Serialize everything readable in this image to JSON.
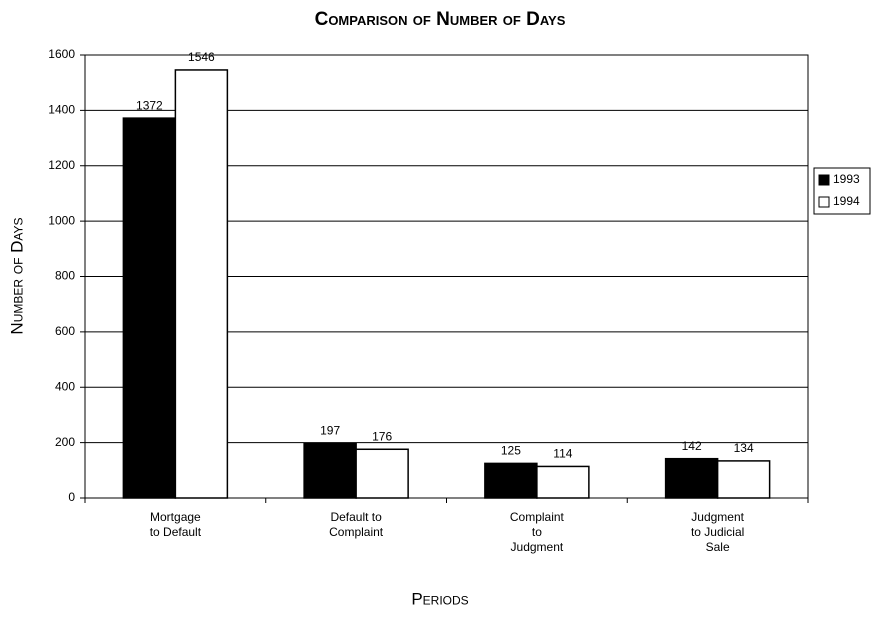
{
  "chart_data": {
    "type": "bar",
    "title": "Comparison of Number of Days",
    "x_label": "Periods",
    "y_label": "Number of Days",
    "categories": [
      "Mortgage\nto Default",
      "Default to\nComplaint",
      "Complaint\nto\nJudgment",
      "Judgment\nto Judicial\nSale"
    ],
    "series": [
      {
        "name": "1993",
        "color": "#000000",
        "values": [
          1372,
          197,
          125,
          142
        ]
      },
      {
        "name": "1994",
        "color": "#ffffff",
        "values": [
          1546,
          176,
          114,
          134
        ]
      }
    ],
    "ylim": [
      0,
      1600
    ],
    "yticks": [
      0,
      200,
      400,
      600,
      800,
      1000,
      1200,
      1400,
      1600
    ],
    "grid": true,
    "legend": "right"
  }
}
